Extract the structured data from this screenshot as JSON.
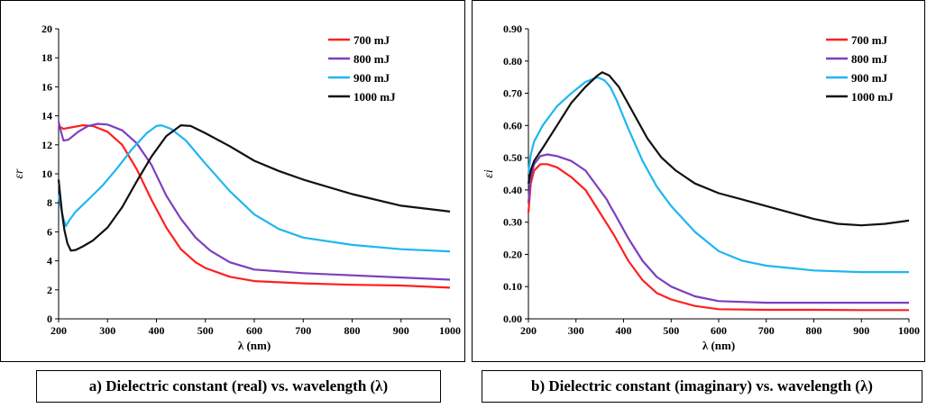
{
  "chart_data": [
    {
      "type": "line",
      "xlabel": "λ (nm)",
      "ylabel": "εr",
      "xlim": [
        200,
        1000
      ],
      "ylim": [
        0,
        20
      ],
      "xticks": [
        200,
        300,
        400,
        500,
        600,
        700,
        800,
        900,
        1000
      ],
      "yticks": [
        0,
        2,
        4,
        6,
        8,
        10,
        12,
        14,
        16,
        18,
        20
      ],
      "ytick_decimals": 0,
      "legend_position": "top-right",
      "grid": false,
      "caption": "a) Dielectric constant (real) vs. wavelength (λ)",
      "series": [
        {
          "name": "700 mJ",
          "color": "#ff1f1f",
          "points": [
            [
              200,
              13.3
            ],
            [
              210,
              13.1
            ],
            [
              225,
              13.2
            ],
            [
              250,
              13.35
            ],
            [
              270,
              13.3
            ],
            [
              300,
              12.9
            ],
            [
              330,
              12.0
            ],
            [
              360,
              10.3
            ],
            [
              390,
              8.2
            ],
            [
              420,
              6.3
            ],
            [
              450,
              4.8
            ],
            [
              480,
              3.9
            ],
            [
              500,
              3.5
            ],
            [
              550,
              2.9
            ],
            [
              600,
              2.6
            ],
            [
              700,
              2.45
            ],
            [
              800,
              2.35
            ],
            [
              900,
              2.3
            ],
            [
              1000,
              2.15
            ]
          ]
        },
        {
          "name": "800 mJ",
          "color": "#7b3fbf",
          "points": [
            [
              200,
              13.6
            ],
            [
              205,
              12.9
            ],
            [
              210,
              12.3
            ],
            [
              220,
              12.35
            ],
            [
              240,
              12.9
            ],
            [
              260,
              13.3
            ],
            [
              280,
              13.45
            ],
            [
              300,
              13.4
            ],
            [
              330,
              13.0
            ],
            [
              360,
              12.1
            ],
            [
              390,
              10.6
            ],
            [
              420,
              8.5
            ],
            [
              450,
              6.9
            ],
            [
              480,
              5.6
            ],
            [
              510,
              4.7
            ],
            [
              550,
              3.9
            ],
            [
              600,
              3.4
            ],
            [
              700,
              3.15
            ],
            [
              800,
              3.0
            ],
            [
              900,
              2.85
            ],
            [
              1000,
              2.7
            ]
          ]
        },
        {
          "name": "900 mJ",
          "color": "#1fb6f0",
          "points": [
            [
              200,
              8.6
            ],
            [
              205,
              7.6
            ],
            [
              210,
              6.9
            ],
            [
              215,
              6.4
            ],
            [
              222,
              6.8
            ],
            [
              235,
              7.4
            ],
            [
              260,
              8.2
            ],
            [
              290,
              9.2
            ],
            [
              320,
              10.4
            ],
            [
              350,
              11.7
            ],
            [
              380,
              12.8
            ],
            [
              400,
              13.3
            ],
            [
              410,
              13.35
            ],
            [
              430,
              13.1
            ],
            [
              460,
              12.3
            ],
            [
              500,
              10.7
            ],
            [
              550,
              8.8
            ],
            [
              600,
              7.2
            ],
            [
              650,
              6.2
            ],
            [
              700,
              5.6
            ],
            [
              800,
              5.1
            ],
            [
              900,
              4.8
            ],
            [
              1000,
              4.65
            ]
          ]
        },
        {
          "name": "1000 mJ",
          "color": "#111111",
          "points": [
            [
              200,
              9.6
            ],
            [
              203,
              8.6
            ],
            [
              207,
              7.3
            ],
            [
              212,
              6.1
            ],
            [
              218,
              5.2
            ],
            [
              225,
              4.7
            ],
            [
              235,
              4.75
            ],
            [
              250,
              5.0
            ],
            [
              270,
              5.4
            ],
            [
              300,
              6.3
            ],
            [
              330,
              7.7
            ],
            [
              360,
              9.5
            ],
            [
              390,
              11.2
            ],
            [
              420,
              12.6
            ],
            [
              450,
              13.35
            ],
            [
              470,
              13.3
            ],
            [
              500,
              12.8
            ],
            [
              550,
              11.9
            ],
            [
              600,
              10.9
            ],
            [
              650,
              10.2
            ],
            [
              700,
              9.6
            ],
            [
              800,
              8.6
            ],
            [
              900,
              7.8
            ],
            [
              1000,
              7.4
            ]
          ]
        }
      ]
    },
    {
      "type": "line",
      "xlabel": "λ (nm)",
      "ylabel": "εi",
      "xlim": [
        200,
        1000
      ],
      "ylim": [
        0,
        0.9
      ],
      "xticks": [
        200,
        300,
        400,
        500,
        600,
        700,
        800,
        900,
        1000
      ],
      "yticks": [
        0.0,
        0.1,
        0.2,
        0.3,
        0.4,
        0.5,
        0.6,
        0.7,
        0.8,
        0.9
      ],
      "ytick_decimals": 2,
      "legend_position": "top-right",
      "grid": false,
      "caption": "b) Dielectric constant (imaginary) vs. wavelength (λ)",
      "series": [
        {
          "name": "700 mJ",
          "color": "#ff1f1f",
          "points": [
            [
              200,
              0.33
            ],
            [
              205,
              0.42
            ],
            [
              212,
              0.46
            ],
            [
              225,
              0.48
            ],
            [
              240,
              0.48
            ],
            [
              260,
              0.47
            ],
            [
              290,
              0.44
            ],
            [
              320,
              0.4
            ],
            [
              350,
              0.33
            ],
            [
              380,
              0.26
            ],
            [
              410,
              0.18
            ],
            [
              440,
              0.12
            ],
            [
              470,
              0.08
            ],
            [
              500,
              0.06
            ],
            [
              550,
              0.04
            ],
            [
              600,
              0.03
            ],
            [
              700,
              0.028
            ],
            [
              800,
              0.028
            ],
            [
              900,
              0.027
            ],
            [
              1000,
              0.027
            ]
          ]
        },
        {
          "name": "800 mJ",
          "color": "#7b3fbf",
          "points": [
            [
              200,
              0.36
            ],
            [
              205,
              0.44
            ],
            [
              212,
              0.48
            ],
            [
              225,
              0.505
            ],
            [
              240,
              0.51
            ],
            [
              260,
              0.505
            ],
            [
              290,
              0.49
            ],
            [
              320,
              0.46
            ],
            [
              350,
              0.4
            ],
            [
              365,
              0.37
            ],
            [
              370,
              0.355
            ],
            [
              380,
              0.33
            ],
            [
              410,
              0.25
            ],
            [
              440,
              0.18
            ],
            [
              470,
              0.13
            ],
            [
              500,
              0.1
            ],
            [
              550,
              0.07
            ],
            [
              600,
              0.055
            ],
            [
              700,
              0.05
            ],
            [
              800,
              0.05
            ],
            [
              900,
              0.05
            ],
            [
              1000,
              0.05
            ]
          ]
        },
        {
          "name": "900 mJ",
          "color": "#1fb6f0",
          "points": [
            [
              200,
              0.45
            ],
            [
              205,
              0.51
            ],
            [
              212,
              0.55
            ],
            [
              230,
              0.6
            ],
            [
              260,
              0.66
            ],
            [
              290,
              0.7
            ],
            [
              320,
              0.735
            ],
            [
              345,
              0.75
            ],
            [
              360,
              0.74
            ],
            [
              372,
              0.72
            ],
            [
              385,
              0.68
            ],
            [
              410,
              0.59
            ],
            [
              440,
              0.49
            ],
            [
              470,
              0.41
            ],
            [
              500,
              0.35
            ],
            [
              550,
              0.27
            ],
            [
              600,
              0.21
            ],
            [
              650,
              0.18
            ],
            [
              700,
              0.165
            ],
            [
              800,
              0.15
            ],
            [
              900,
              0.145
            ],
            [
              1000,
              0.145
            ]
          ]
        },
        {
          "name": "1000 mJ",
          "color": "#111111",
          "points": [
            [
              200,
              0.42
            ],
            [
              205,
              0.46
            ],
            [
              212,
              0.49
            ],
            [
              230,
              0.53
            ],
            [
              260,
              0.6
            ],
            [
              290,
              0.67
            ],
            [
              320,
              0.72
            ],
            [
              345,
              0.755
            ],
            [
              355,
              0.765
            ],
            [
              370,
              0.755
            ],
            [
              390,
              0.72
            ],
            [
              420,
              0.64
            ],
            [
              450,
              0.56
            ],
            [
              480,
              0.5
            ],
            [
              510,
              0.46
            ],
            [
              550,
              0.42
            ],
            [
              600,
              0.39
            ],
            [
              650,
              0.37
            ],
            [
              700,
              0.35
            ],
            [
              800,
              0.31
            ],
            [
              850,
              0.295
            ],
            [
              900,
              0.29
            ],
            [
              950,
              0.295
            ],
            [
              1000,
              0.305
            ]
          ]
        }
      ]
    }
  ]
}
